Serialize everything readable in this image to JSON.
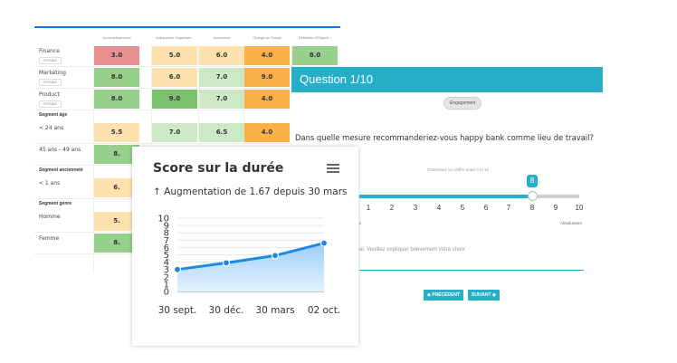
{
  "heatmap": {
    "columns": [
      "Accomplissement",
      "Adéquation Organisat...",
      "Autonomie",
      "Charge au Travail",
      "Définition d'Objecti..."
    ],
    "filter_label": "Groupe",
    "sections": [
      {
        "header": "",
        "rows": [
          {
            "label": "Finance",
            "filter": true,
            "values": [
              "3.0",
              "5.0",
              "6.0",
              "4.0",
              "8.0"
            ]
          },
          {
            "label": "Marketing",
            "filter": true,
            "values": [
              "8.0",
              "6.0",
              "7.0",
              "9.0",
              ""
            ]
          },
          {
            "label": "Product",
            "filter": true,
            "values": [
              "8.0",
              "9.0",
              "7.0",
              "4.0",
              ""
            ]
          }
        ]
      },
      {
        "header": "Segment âge",
        "rows": [
          {
            "label": "< 24 ans",
            "filter": false,
            "values": [
              "5.5",
              "7.0",
              "6.5",
              "4.0",
              ""
            ]
          },
          {
            "label": "45 ans - 49 ans",
            "filter": false,
            "values": [
              "8.",
              "",
              "",
              "",
              ""
            ]
          }
        ]
      },
      {
        "header": "Segment ancienneté",
        "rows": [
          {
            "label": "< 1 ans",
            "filter": false,
            "values": [
              "6.",
              "",
              "",
              "",
              ""
            ]
          }
        ]
      },
      {
        "header": "Segment genre",
        "rows": [
          {
            "label": "Homme",
            "filter": false,
            "values": [
              "5.",
              "",
              "",
              "",
              ""
            ]
          },
          {
            "label": "Femme",
            "filter": false,
            "values": [
              "8.",
              "",
              "",
              "",
              ""
            ]
          }
        ]
      }
    ],
    "colors": {
      "red": "#e88f8f",
      "lightorange": "#fde2b0",
      "orange": "#fbb04a",
      "lightgreen": "#cde8c4",
      "green": "#97cf8c"
    }
  },
  "question": {
    "title": "Question 1/10",
    "badge": "Engagement",
    "text": "Dans quelle mesure recommanderiez-vous happy bank comme lieu de travail?",
    "hint": "Choisissez un chiffre entre 0 et 10",
    "scale": [
      "1",
      "2",
      "3",
      "4",
      "5",
      "6",
      "7",
      "8",
      "9",
      "10"
    ],
    "selected_value": "8",
    "selected_fraction": 0.8,
    "left_extreme": "z",
    "right_extreme": "Absolument",
    "placeholder": "el. Veuillez expliquer brièvement votre choix",
    "prev_button": "◆ PRÉCÉDENT",
    "next_button": "SUIVANT ◆",
    "accent": "#26b0c8"
  },
  "score": {
    "title": "Score sur la durée",
    "subtitle": "↑ Augmentation de 1.67 depuis 30 mars",
    "menu_icon": "hamburger-icon"
  },
  "chart_data": {
    "type": "area",
    "categories": [
      "30 sept.",
      "30 déc.",
      "30 mars",
      "02 oct."
    ],
    "values": [
      3.0,
      3.9,
      4.9,
      6.6
    ],
    "yticks": [
      "0",
      "1",
      "2",
      "3",
      "4",
      "5",
      "6",
      "7",
      "8",
      "9",
      "10"
    ],
    "ylim": [
      0,
      10
    ],
    "color": "#1e88e5",
    "grid": true,
    "legend": "none"
  }
}
